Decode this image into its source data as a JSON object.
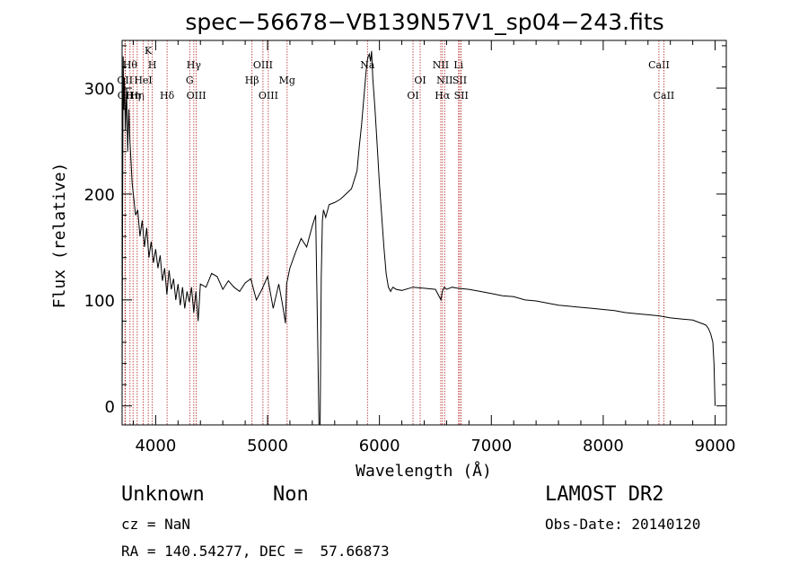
{
  "chart_data": {
    "type": "line",
    "title": "spec−56678−VB139N57V1_sp04−243.fits",
    "xlabel": "Wavelength (Å)",
    "ylabel": "Flux (relative)",
    "xlim": [
      3700,
      9100
    ],
    "ylim": [
      -18,
      345
    ],
    "xticks": [
      4000,
      5000,
      6000,
      7000,
      8000,
      9000
    ],
    "yticks": [
      0,
      100,
      200,
      300
    ],
    "series": [
      {
        "x": [
          3700,
          3705,
          3710,
          3715,
          3720,
          3730,
          3740,
          3750,
          3760,
          3770,
          3780,
          3790,
          3800,
          3820,
          3840,
          3860,
          3880,
          3900,
          3920,
          3940,
          3960,
          3980,
          4000,
          4020,
          4040,
          4060,
          4080,
          4100,
          4120,
          4140,
          4160,
          4180,
          4200,
          4220,
          4240,
          4260,
          4280,
          4300,
          4320,
          4340,
          4360,
          4380,
          4400,
          4450,
          4500,
          4550,
          4600,
          4650,
          4700,
          4750,
          4800,
          4850,
          4900,
          4950,
          5000,
          5050,
          5100,
          5130,
          5160,
          5170,
          5200,
          5250,
          5300,
          5350,
          5400,
          5430,
          5450,
          5460,
          5470,
          5480,
          5490,
          5500,
          5520,
          5550,
          5600,
          5650,
          5700,
          5750,
          5780,
          5800,
          5820,
          5840,
          5860,
          5880,
          5890,
          5900,
          5910,
          5920,
          5930,
          5940,
          5960,
          5980,
          6000,
          6020,
          6040,
          6060,
          6080,
          6100,
          6120,
          6150,
          6200,
          6300,
          6400,
          6500,
          6550,
          6562,
          6580,
          6600,
          6650,
          6700,
          6800,
          6900,
          7000,
          7100,
          7200,
          7300,
          7400,
          7500,
          7600,
          7700,
          7800,
          7900,
          8000,
          8100,
          8200,
          8300,
          8400,
          8500,
          8600,
          8700,
          8800,
          8850,
          8900,
          8920,
          8940,
          8960,
          8980,
          8990,
          9000
        ],
        "y": [
          5,
          200,
          330,
          280,
          310,
          260,
          300,
          240,
          280,
          250,
          230,
          210,
          200,
          180,
          185,
          160,
          175,
          150,
          168,
          140,
          155,
          135,
          148,
          130,
          142,
          118,
          130,
          105,
          128,
          110,
          120,
          100,
          115,
          95,
          112,
          92,
          108,
          98,
          112,
          88,
          108,
          80,
          115,
          112,
          125,
          122,
          110,
          118,
          112,
          108,
          116,
          120,
          100,
          110,
          122,
          92,
          115,
          98,
          78,
          115,
          130,
          145,
          158,
          150,
          170,
          180,
          50,
          -20,
          -20,
          120,
          175,
          185,
          178,
          190,
          192,
          195,
          200,
          205,
          215,
          222,
          245,
          265,
          290,
          315,
          325,
          330,
          332,
          325,
          335,
          310,
          280,
          245,
          210,
          180,
          150,
          125,
          112,
          108,
          112,
          110,
          109,
          112,
          111,
          110,
          100,
          108,
          112,
          110,
          112,
          111,
          110,
          108,
          106,
          104,
          103,
          100,
          99,
          97,
          95,
          94,
          93,
          92,
          91,
          90,
          88,
          87,
          86,
          85,
          83,
          82,
          81,
          79,
          77,
          76,
          73,
          68,
          60,
          40,
          0
        ]
      }
    ],
    "lines": [
      {
        "w": 3726,
        "lbl": "OII",
        "row": 2
      },
      {
        "w": 3729,
        "lbl": "OII",
        "row": 3
      },
      {
        "w": 3771,
        "lbl": "Hθ",
        "row": 1
      },
      {
        "w": 3798,
        "lbl": "Hη",
        "row": 3
      },
      {
        "w": 3835,
        "lbl": "Hη",
        "row": 3
      },
      {
        "w": 3889,
        "lbl": "HeI",
        "row": 2
      },
      {
        "w": 3934,
        "lbl": "K",
        "row": 0
      },
      {
        "w": 3970,
        "lbl": "H",
        "row": 1
      },
      {
        "w": 4102,
        "lbl": "Hδ",
        "row": 3
      },
      {
        "w": 4304,
        "lbl": "G",
        "row": 2
      },
      {
        "w": 4341,
        "lbl": "Hγ",
        "row": 1
      },
      {
        "w": 4363,
        "lbl": "OIII",
        "row": 3
      },
      {
        "w": 4861,
        "lbl": "Hβ",
        "row": 2
      },
      {
        "w": 4959,
        "lbl": "OIII",
        "row": 1
      },
      {
        "w": 5007,
        "lbl": "OIII",
        "row": 3
      },
      {
        "w": 5175,
        "lbl": "Mg",
        "row": 2
      },
      {
        "w": 5893,
        "lbl": "Na",
        "row": 1
      },
      {
        "w": 6300,
        "lbl": "OI",
        "row": 3
      },
      {
        "w": 6364,
        "lbl": "OI",
        "row": 2
      },
      {
        "w": 6548,
        "lbl": "NII",
        "row": 1
      },
      {
        "w": 6563,
        "lbl": "Hα",
        "row": 3
      },
      {
        "w": 6583,
        "lbl": "NII",
        "row": 2
      },
      {
        "w": 6707,
        "lbl": "Li",
        "row": 1
      },
      {
        "w": 6717,
        "lbl": "SII",
        "row": 2
      },
      {
        "w": 6731,
        "lbl": "SII",
        "row": 3
      },
      {
        "w": 8498,
        "lbl": "CaII",
        "row": 1
      },
      {
        "w": 8542,
        "lbl": "CaII",
        "row": 3
      }
    ],
    "colors": {
      "spectrum": "#000000",
      "lines": "#b22222",
      "axes": "#000000"
    }
  },
  "info": {
    "class": "Unknown",
    "subclass": "Non",
    "cz": "cz = NaN",
    "coords": "RA = 140.54277, DEC =  57.66873",
    "survey": "LAMOST DR2",
    "obs_date": "Obs-Date: 20140120"
  }
}
